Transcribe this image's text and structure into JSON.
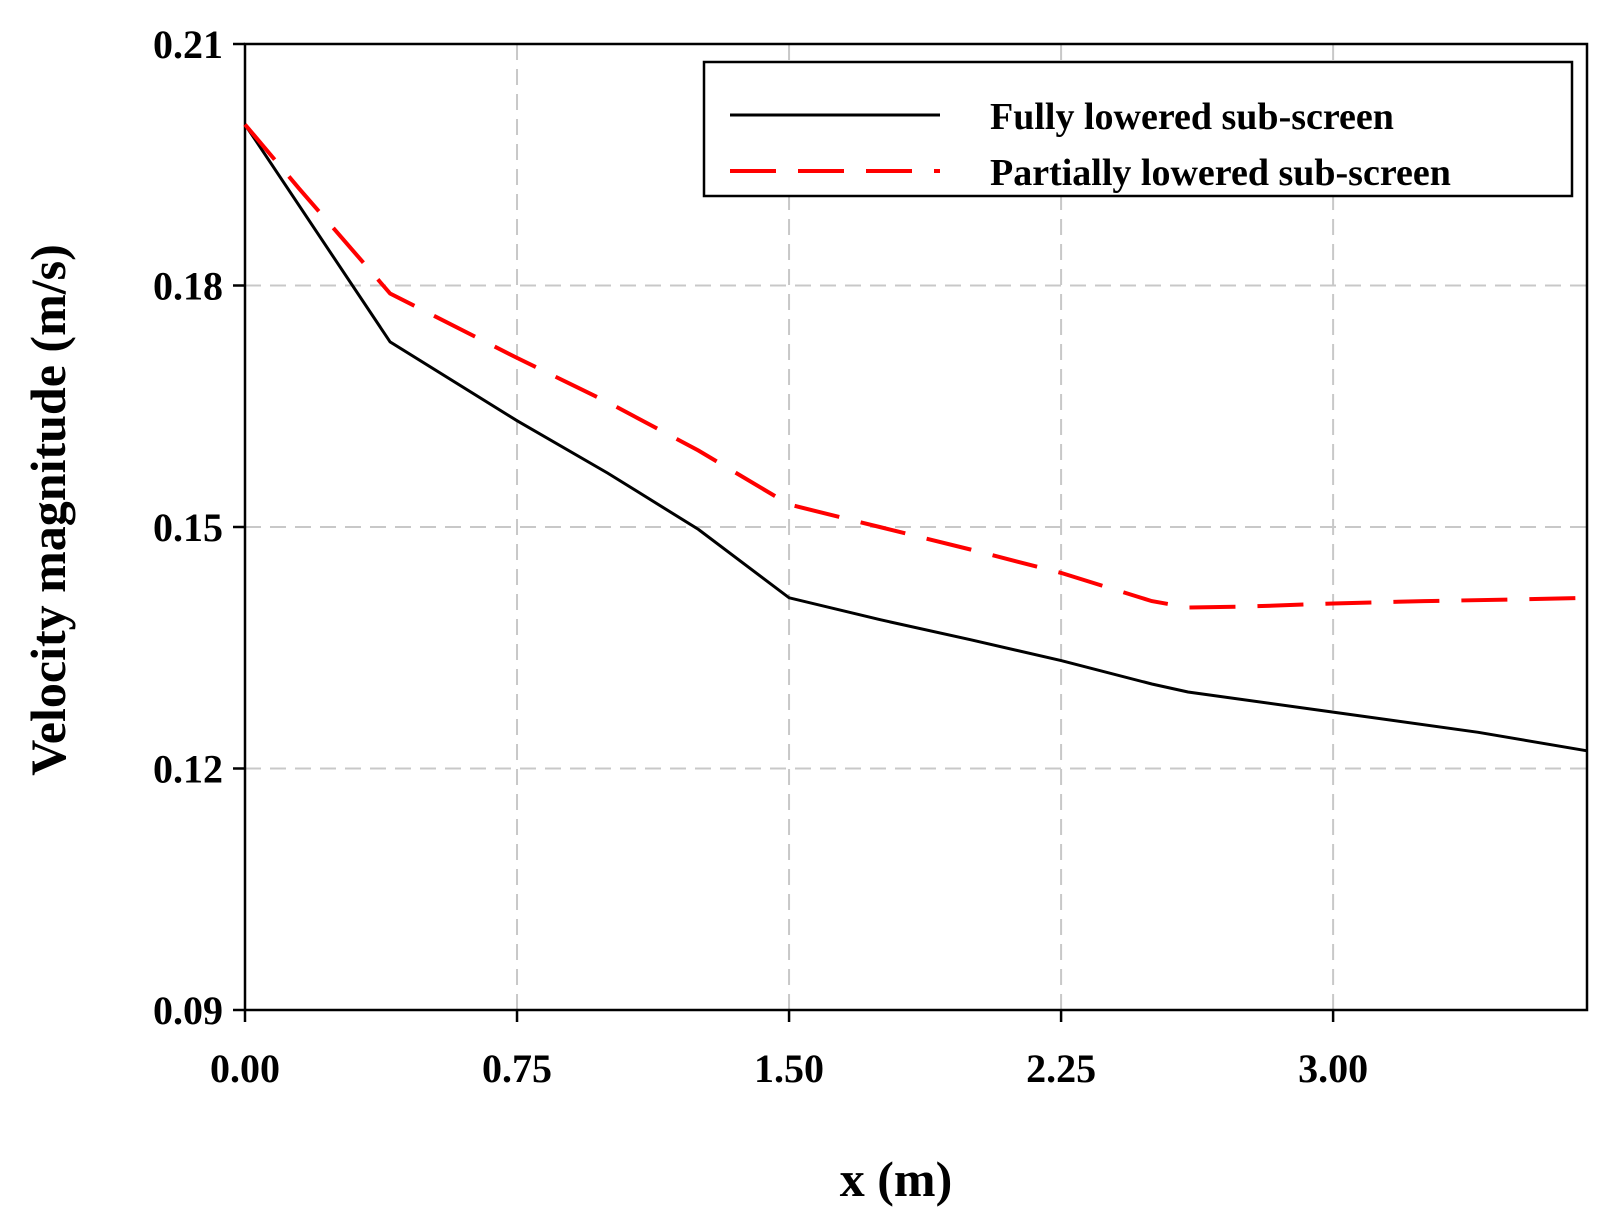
{
  "chart_data": {
    "type": "line",
    "title": "",
    "xlabel": "x (m)",
    "ylabel": "Velocity magnitude (m/s)",
    "xlim": [
      0,
      3.7
    ],
    "ylim": [
      0.09,
      0.21
    ],
    "xticks": [
      0,
      0.75,
      1.5,
      2.25,
      3.0
    ],
    "xtick_labels": [
      "0.00",
      "0.75",
      "1.50",
      "2.25",
      "3.00"
    ],
    "yticks": [
      0.09,
      0.12,
      0.15,
      0.18,
      0.21
    ],
    "ytick_labels": [
      "0.09",
      "0.12",
      "0.15",
      "0.18",
      "0.21"
    ],
    "grid": true,
    "legend_position": "top-right",
    "series": [
      {
        "name": "Fully lowered sub-screen",
        "color": "#000000",
        "style": "solid",
        "x": [
          0,
          0.4,
          0.75,
          1.0,
          1.25,
          1.5,
          1.75,
          2.0,
          2.25,
          2.5,
          2.6,
          3.0,
          3.4,
          3.7
        ],
        "y": [
          0.2,
          0.173,
          0.1632,
          0.1567,
          0.1497,
          0.1412,
          0.1385,
          0.136,
          0.1334,
          0.1305,
          0.1295,
          0.127,
          0.1245,
          0.1222
        ]
      },
      {
        "name": "Partially lowered sub-screen",
        "color": "#ff0000",
        "style": "dashed",
        "x": [
          0,
          0.15,
          0.4,
          0.75,
          1.0,
          1.25,
          1.5,
          1.75,
          2.0,
          2.25,
          2.5,
          2.6,
          2.75,
          3.0,
          3.25,
          3.5,
          3.7
        ],
        "y": [
          0.2,
          0.192,
          0.179,
          0.171,
          0.1655,
          0.1595,
          0.1528,
          0.15,
          0.1472,
          0.1443,
          0.1408,
          0.14,
          0.1401,
          0.1405,
          0.1408,
          0.141,
          0.1412
        ]
      }
    ]
  }
}
